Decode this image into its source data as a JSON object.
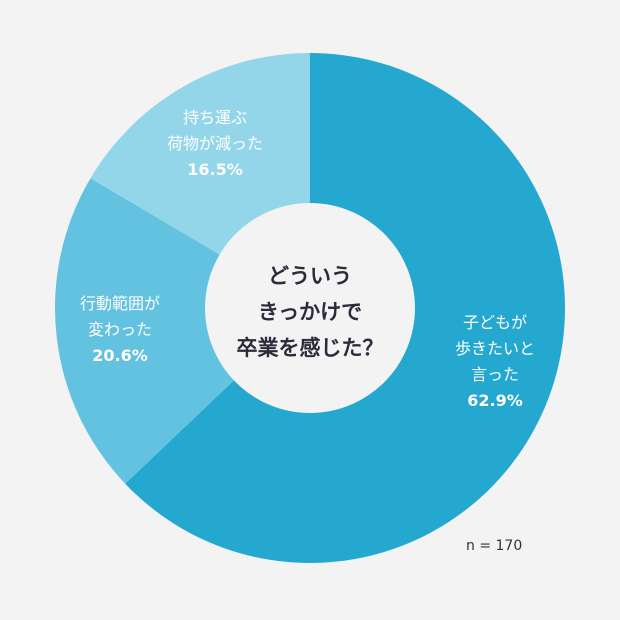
{
  "chart_data": {
    "type": "pie",
    "donut": true,
    "title": "どういう きっかけで 卒業を感じた？",
    "title_lines": [
      "どういう",
      "きっかけで",
      "卒業を感じた？"
    ],
    "slices": [
      {
        "label": "子どもが歩きたいと言った",
        "label_lines": [
          "子どもが",
          "歩きたいと",
          "言った"
        ],
        "value": 62.9,
        "pct_text": "62.9%",
        "color": "#24a8d0"
      },
      {
        "label": "行動範囲が変わった",
        "label_lines": [
          "行動範囲が",
          "変わった"
        ],
        "value": 20.6,
        "pct_text": "20.6%",
        "color": "#62c2e0"
      },
      {
        "label": "持ち運ぶ荷物が減った",
        "label_lines": [
          "持ち運ぶ",
          "荷物が減った"
        ],
        "value": 16.5,
        "pct_text": "16.5%",
        "color": "#93d6ea"
      }
    ],
    "start_angle_deg": 0,
    "direction": "clockwise",
    "sample_size": "n = 170"
  },
  "colors": {
    "background": "#f3f3f3",
    "hole": "#f3f3f3",
    "title_text": "#2b2b3a",
    "label_text": "#ffffff"
  }
}
